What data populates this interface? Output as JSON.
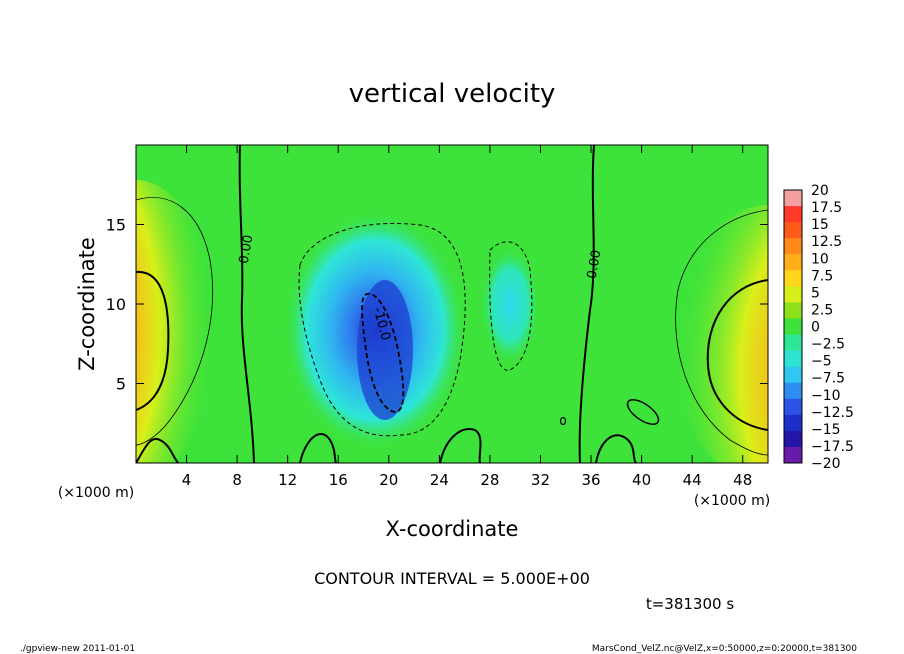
{
  "chart_data": {
    "type": "heatmap",
    "title": "vertical velocity",
    "xlabel": "X-coordinate",
    "ylabel": "Z-coordinate",
    "x_unit_left": "(×1000 m)",
    "x_unit_right": "(×1000 m)",
    "xlim": [
      0,
      50
    ],
    "ylim": [
      0,
      20
    ],
    "x_ticks": [
      "4",
      "8",
      "12",
      "16",
      "20",
      "24",
      "28",
      "32",
      "36",
      "40",
      "44",
      "48"
    ],
    "x_tick_values": [
      4,
      8,
      12,
      16,
      20,
      24,
      28,
      32,
      36,
      40,
      44,
      48
    ],
    "y_ticks": [
      "5",
      "10",
      "15"
    ],
    "y_tick_values": [
      5,
      10,
      15
    ],
    "colorbar_labels": [
      "20",
      "17.5",
      "15",
      "12.5",
      "10",
      "7.5",
      "5",
      "2.5",
      "0",
      "−2.5",
      "−5",
      "−7.5",
      "−10",
      "−12.5",
      "−15",
      "−17.5",
      "−20"
    ],
    "colorbar_colors": [
      "#f4a0a0",
      "#ff3a2a",
      "#ff5a1a",
      "#ff8a1a",
      "#ffae1a",
      "#ffd61a",
      "#d6ef1a",
      "#8ee01a",
      "#3de33a",
      "#2de696",
      "#2ee3d2",
      "#30c7f0",
      "#2e8ef0",
      "#2c52e8",
      "#1e2ec8",
      "#2414a8",
      "#6a1aa8"
    ],
    "contour_labels": [
      "0.00",
      "0.00",
      "-10.0"
    ],
    "contour_interval": "CONTOUR INTERVAL = 5.000E+00",
    "time_label": "t=381300 s",
    "features": [
      {
        "x": 1.0,
        "z": 7.0,
        "w": 12,
        "desc": "updraft left edge"
      },
      {
        "x": 48.5,
        "z": 7.0,
        "w": 12,
        "desc": "updraft right edge"
      },
      {
        "x": 19.5,
        "z": 7.5,
        "w": -12,
        "desc": "downdraft core"
      },
      {
        "x": 30.0,
        "z": 9.5,
        "w": -3,
        "desc": "weak downdraft"
      }
    ]
  },
  "footer": {
    "left": "./gpview-new  2011-01-01",
    "right": "MarsCond_VelZ.nc@VelZ,x=0:50000,z=0:20000,t=381300"
  }
}
